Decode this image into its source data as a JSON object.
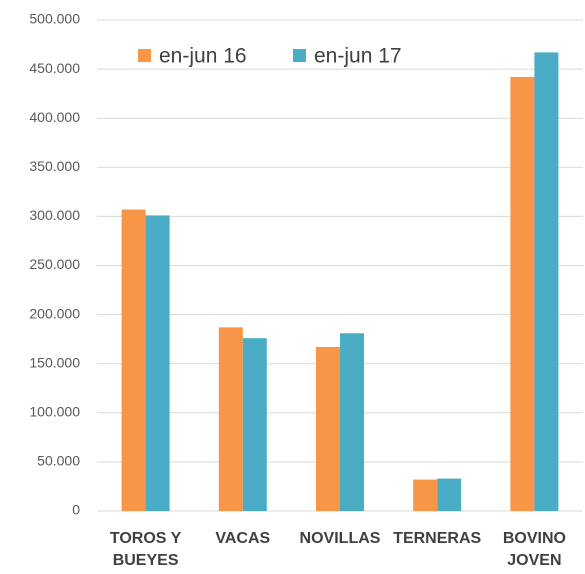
{
  "chart_data": {
    "type": "bar",
    "categories": [
      "TOROS Y BUEYES",
      "VACAS",
      "NOVILLAS",
      "TERNERAS",
      "BOVINO JOVEN"
    ],
    "series": [
      {
        "name": "en-jun 16",
        "color": "#f79646",
        "values": [
          307000,
          187000,
          167000,
          32000,
          442000
        ]
      },
      {
        "name": "en-jun 17",
        "color": "#4bacc6",
        "values": [
          301000,
          176000,
          181000,
          33000,
          467000
        ]
      }
    ],
    "ylim": [
      0,
      500000
    ],
    "yticks": [
      0,
      {
        "value": 50000,
        "label": "50.000"
      },
      {
        "value": 100000,
        "label": "100.000"
      },
      {
        "value": 150000,
        "label": "150.000"
      },
      {
        "value": 200000,
        "label": "200.000"
      },
      {
        "value": 250000,
        "label": "250.000"
      },
      {
        "value": 300000,
        "label": "300.000"
      },
      {
        "value": 350000,
        "label": "350.000"
      },
      {
        "value": 400000,
        "label": "400.000"
      },
      {
        "value": 450000,
        "label": "450.000"
      },
      {
        "value": 500000,
        "label": "500.000"
      }
    ],
    "grid": true,
    "legend": "top"
  }
}
